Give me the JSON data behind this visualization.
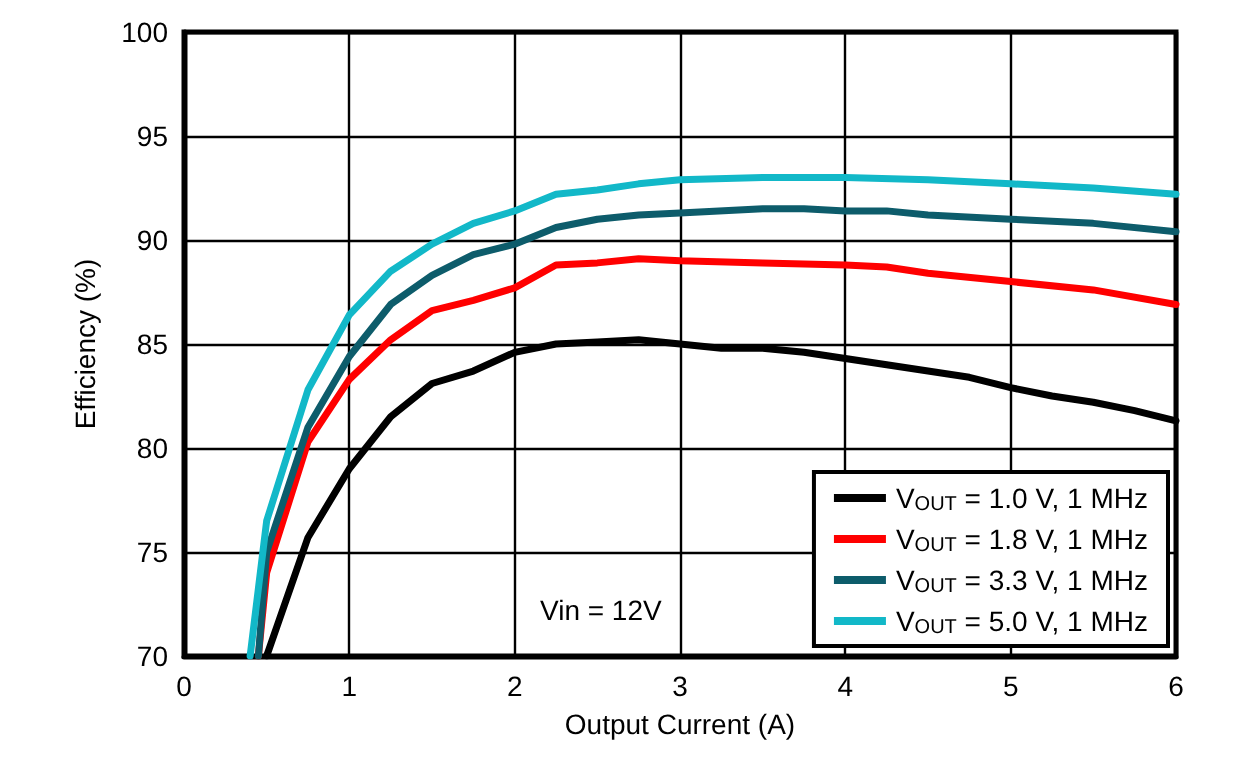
{
  "chart_data": {
    "type": "line",
    "xlabel": "Output Current (A)",
    "ylabel": "Efficiency (%)",
    "xlim": [
      0,
      6
    ],
    "xticks": [
      0,
      1,
      2,
      3,
      4,
      5,
      6
    ],
    "ylim": [
      70,
      100
    ],
    "yticks": [
      70,
      75,
      80,
      85,
      90,
      95,
      100
    ],
    "grid": true,
    "legend": "bottom right",
    "marker": "none",
    "line_style": "solid",
    "annotations": [
      "Vin = 12V"
    ],
    "series": [
      {
        "name": "V$_{OUT}$ = 1.0 V, 1 MHz",
        "color": "#000000",
        "x": [
          0.5,
          0.75,
          1,
          1.25,
          1.5,
          1.75,
          2,
          2.25,
          2.5,
          2.75,
          3,
          3.25,
          3.5,
          3.75,
          4,
          4.25,
          4.5,
          4.75,
          5,
          5.25,
          5.5,
          5.75,
          6
        ],
        "values": [
          70,
          75.7,
          79,
          81.5,
          83.1,
          83.7,
          84.6,
          85,
          85.1,
          85.2,
          85,
          84.8,
          84.8,
          84.6,
          84.3,
          84,
          83.7,
          83.4,
          82.9,
          82.5,
          82.2,
          81.8,
          81.3
        ]
      },
      {
        "name": "V$_{OUT}$ = 1.8 V, 1 MHz",
        "color": "#ff0000",
        "x": [
          0.45,
          0.5,
          0.75,
          1,
          1.25,
          1.5,
          1.75,
          2,
          2.25,
          2.5,
          2.75,
          3,
          3.5,
          4,
          4.25,
          4.5,
          5,
          5.5,
          6
        ],
        "values": [
          70,
          74,
          80.3,
          83.3,
          85.2,
          86.6,
          87.1,
          87.7,
          88.8,
          88.9,
          89.1,
          89,
          88.9,
          88.8,
          88.7,
          88.4,
          88,
          87.6,
          86.9
        ]
      },
      {
        "name": "V$_{OUT}$ = 3.3 V, 1 MHz",
        "color": "#0d5c6b",
        "x": [
          0.45,
          0.5,
          0.75,
          1,
          1.25,
          1.5,
          1.75,
          2,
          2.25,
          2.5,
          2.75,
          3,
          3.5,
          3.75,
          4,
          4.25,
          4.5,
          5,
          5.5,
          6
        ],
        "values": [
          70,
          75,
          81,
          84.4,
          86.9,
          88.3,
          89.3,
          89.8,
          90.6,
          91,
          91.2,
          91.3,
          91.5,
          91.5,
          91.4,
          91.4,
          91.2,
          91,
          90.8,
          90.4
        ]
      },
      {
        "name": "V$_{OUT}$ = 5.0 V, 1 MHz",
        "color": "#12b8c8",
        "x": [
          0.4,
          0.5,
          0.75,
          1,
          1.25,
          1.5,
          1.75,
          2,
          2.25,
          2.5,
          2.75,
          3,
          3.5,
          4,
          4.5,
          5,
          5.5,
          6
        ],
        "values": [
          70,
          76.5,
          82.8,
          86.4,
          88.5,
          89.8,
          90.8,
          91.4,
          92.2,
          92.4,
          92.7,
          92.9,
          93,
          93,
          92.9,
          92.7,
          92.5,
          92.2
        ]
      }
    ]
  }
}
